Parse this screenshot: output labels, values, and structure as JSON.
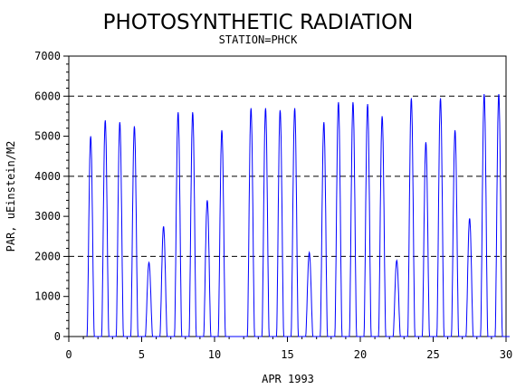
{
  "chart_data": {
    "type": "line",
    "title": "PHOTOSYNTHETIC RADIATION",
    "subtitle": "STATION=PHCK",
    "xlabel": "APR 1993",
    "ylabel": "PAR, uEinstein/M2",
    "xlim": [
      0,
      30
    ],
    "ylim": [
      0,
      7000
    ],
    "x_ticks": [
      0,
      5,
      10,
      15,
      20,
      25,
      30
    ],
    "y_ticks": [
      0,
      1000,
      2000,
      3000,
      4000,
      5000,
      6000,
      7000
    ],
    "reference_lines": [
      2000,
      4000,
      6000
    ],
    "grid": false,
    "legend": "none",
    "line_color": "#0000ff",
    "series": [
      {
        "daily_peaks": [
          {
            "day": 1,
            "peak": 5000
          },
          {
            "day": 2,
            "peak": 5400
          },
          {
            "day": 3,
            "peak": 5350
          },
          {
            "day": 4,
            "peak": 5250
          },
          {
            "day": 5,
            "peak": 1850
          },
          {
            "day": 6,
            "peak": 2750
          },
          {
            "day": 7,
            "peak": 5600
          },
          {
            "day": 8,
            "peak": 5600
          },
          {
            "day": 9,
            "peak": 3400
          },
          {
            "day": 10,
            "peak": 5150
          },
          {
            "day": 12,
            "peak": 5700
          },
          {
            "day": 13,
            "peak": 5700
          },
          {
            "day": 14,
            "peak": 5650
          },
          {
            "day": 15,
            "peak": 5700
          },
          {
            "day": 16,
            "peak": 2100
          },
          {
            "day": 17,
            "peak": 5350
          },
          {
            "day": 18,
            "peak": 5850
          },
          {
            "day": 19,
            "peak": 5850
          },
          {
            "day": 20,
            "peak": 5800
          },
          {
            "day": 21,
            "peak": 5500
          },
          {
            "day": 22,
            "peak": 1900
          },
          {
            "day": 23,
            "peak": 5950
          },
          {
            "day": 24,
            "peak": 4850
          },
          {
            "day": 25,
            "peak": 5950
          },
          {
            "day": 26,
            "peak": 5150
          },
          {
            "day": 27,
            "peak": 2950
          },
          {
            "day": 28,
            "peak": 6050
          },
          {
            "day": 29,
            "peak": 6050
          }
        ]
      }
    ]
  }
}
